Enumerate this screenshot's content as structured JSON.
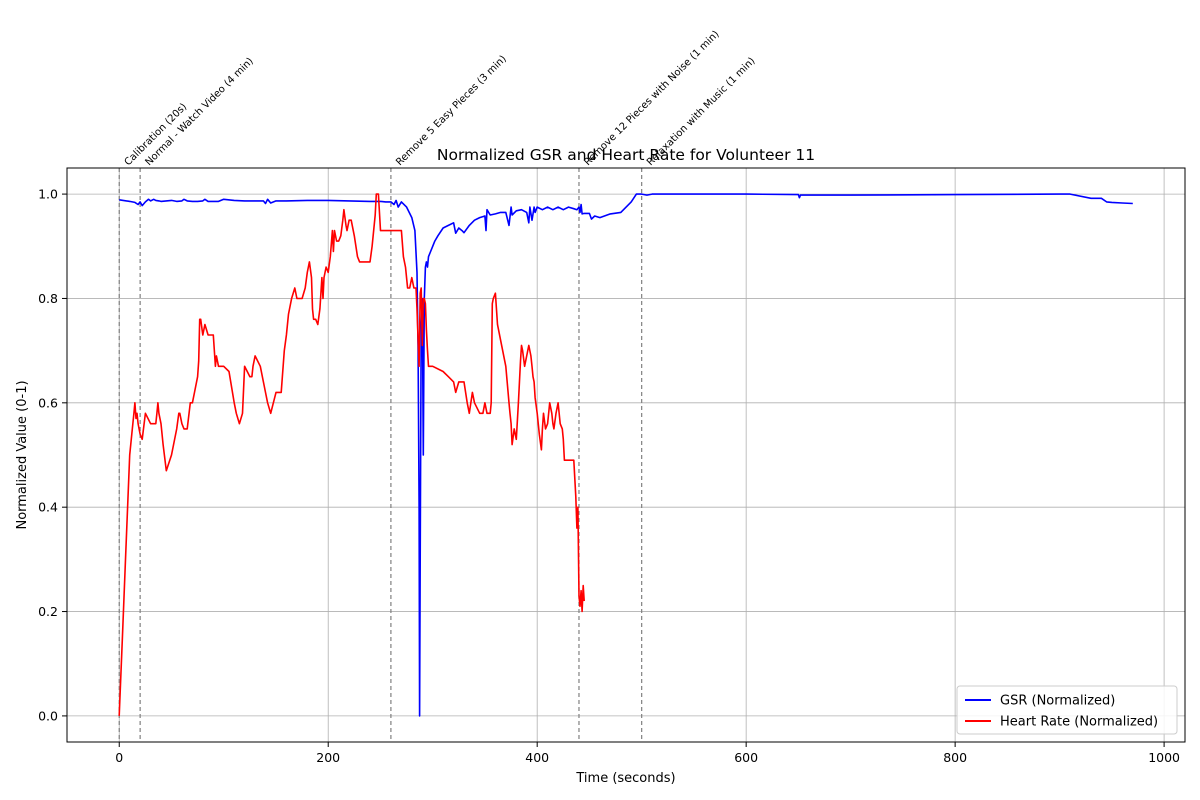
{
  "chart_data": {
    "type": "line",
    "title": "Normalized GSR and Heart Rate for Volunteer 11",
    "xlabel": "Time (seconds)",
    "ylabel": "Normalized Value (0-1)",
    "xlim": [
      -50,
      1020
    ],
    "ylim": [
      -0.05,
      1.05
    ],
    "xticks": [
      0,
      200,
      400,
      600,
      800,
      1000
    ],
    "xtick_labels": [
      "0",
      "200",
      "400",
      "600",
      "800",
      "1000"
    ],
    "yticks": [
      0.0,
      0.2,
      0.4,
      0.6,
      0.8,
      1.0
    ],
    "ytick_labels": [
      "0.0",
      "0.2",
      "0.4",
      "0.6",
      "0.8",
      "1.0"
    ],
    "grid": true,
    "legend_position": "lower right",
    "phases": [
      {
        "x": 0,
        "label": "Calibration (20s)"
      },
      {
        "x": 20,
        "label": "Normal - Watch Video (4 min)"
      },
      {
        "x": 260,
        "label": "Remove 5 Easy Pieces (3 min)"
      },
      {
        "x": 440,
        "label": "Remove 12 Pieces with Noise (1 min)"
      },
      {
        "x": 500,
        "label": "Relaxation with Music (1 min)"
      }
    ],
    "series": [
      {
        "name": "GSR (Normalized)",
        "color": "#0000ff",
        "x": [
          0,
          10,
          15,
          18,
          20,
          22,
          25,
          28,
          30,
          33,
          35,
          38,
          40,
          45,
          50,
          55,
          60,
          62,
          65,
          70,
          75,
          80,
          82,
          85,
          90,
          95,
          100,
          110,
          120,
          130,
          138,
          140,
          142,
          145,
          150,
          160,
          180,
          200,
          220,
          240,
          250,
          255,
          260,
          263,
          265,
          267,
          270,
          275,
          280,
          283,
          285,
          286,
          287,
          287.5,
          288,
          289,
          290,
          291,
          292,
          293,
          294,
          295,
          296,
          298,
          300,
          302,
          305,
          310,
          315,
          320,
          322,
          325,
          328,
          330,
          335,
          340,
          345,
          350,
          351,
          352,
          355,
          360,
          365,
          370,
          373,
          375,
          376,
          380,
          385,
          390,
          392,
          393,
          395,
          397,
          398,
          400,
          405,
          410,
          415,
          420,
          425,
          430,
          435,
          438,
          440,
          441,
          442,
          443,
          445,
          450,
          452,
          455,
          460,
          470,
          480,
          490,
          495,
          500,
          505,
          510,
          520,
          600,
          650,
          651,
          652,
          655,
          700,
          800,
          900,
          910,
          930,
          940,
          945,
          950,
          960,
          970
        ],
        "y": [
          0.989,
          0.986,
          0.984,
          0.98,
          0.985,
          0.978,
          0.985,
          0.99,
          0.987,
          0.99,
          0.988,
          0.987,
          0.986,
          0.987,
          0.988,
          0.986,
          0.987,
          0.99,
          0.987,
          0.986,
          0.986,
          0.987,
          0.99,
          0.986,
          0.986,
          0.986,
          0.99,
          0.988,
          0.987,
          0.987,
          0.987,
          0.982,
          0.99,
          0.983,
          0.987,
          0.987,
          0.988,
          0.988,
          0.987,
          0.986,
          0.986,
          0.985,
          0.985,
          0.98,
          0.988,
          0.975,
          0.985,
          0.975,
          0.955,
          0.93,
          0.85,
          0.7,
          0.4,
          0.0,
          0.3,
          0.75,
          0.8,
          0.5,
          0.8,
          0.86,
          0.87,
          0.86,
          0.88,
          0.89,
          0.9,
          0.91,
          0.92,
          0.935,
          0.94,
          0.945,
          0.925,
          0.935,
          0.93,
          0.926,
          0.94,
          0.95,
          0.955,
          0.958,
          0.93,
          0.97,
          0.96,
          0.962,
          0.965,
          0.965,
          0.94,
          0.975,
          0.96,
          0.968,
          0.97,
          0.965,
          0.945,
          0.975,
          0.95,
          0.975,
          0.965,
          0.975,
          0.97,
          0.975,
          0.97,
          0.975,
          0.97,
          0.975,
          0.972,
          0.97,
          0.975,
          0.965,
          0.98,
          0.962,
          0.963,
          0.963,
          0.952,
          0.958,
          0.955,
          0.962,
          0.965,
          0.985,
          1.0,
          1.0,
          0.998,
          1.0,
          1.0,
          1.0,
          0.999,
          0.993,
          0.998,
          0.998,
          0.998,
          0.999,
          1.0,
          1.0,
          0.992,
          0.992,
          0.985,
          0.984,
          0.983,
          0.982
        ]
      },
      {
        "name": "Heart Rate (Normalized)",
        "color": "#ff0000",
        "x": [
          0,
          3,
          6,
          10,
          12,
          14,
          15,
          16,
          17,
          18,
          20,
          22,
          25,
          30,
          35,
          36,
          37,
          38,
          40,
          42,
          45,
          50,
          55,
          57,
          58,
          60,
          62,
          65,
          68,
          70,
          72,
          75,
          76,
          77,
          78,
          80,
          82,
          85,
          90,
          92,
          93,
          95,
          100,
          105,
          110,
          112,
          115,
          118,
          120,
          125,
          127,
          128,
          130,
          135,
          138,
          140,
          142,
          145,
          150,
          155,
          158,
          160,
          162,
          165,
          168,
          170,
          175,
          178,
          180,
          182,
          184,
          185,
          186,
          188,
          190,
          192,
          194,
          195,
          196,
          198,
          200,
          202,
          204,
          205,
          206,
          208,
          210,
          212,
          214,
          215,
          217,
          218,
          220,
          222,
          225,
          228,
          230,
          235,
          240,
          242,
          245,
          246,
          248,
          250,
          252,
          255,
          260,
          265,
          270,
          272,
          274,
          276,
          278,
          280,
          282,
          284,
          285,
          286,
          287,
          288,
          289,
          290,
          291,
          292,
          293,
          294,
          295,
          296,
          298,
          300,
          310,
          315,
          320,
          322,
          325,
          330,
          333,
          335,
          338,
          340,
          345,
          348,
          350,
          352,
          355,
          356,
          357,
          358,
          360,
          362,
          365,
          370,
          373,
          374,
          375,
          376,
          378,
          380,
          382,
          384,
          385,
          386,
          388,
          390,
          392,
          394,
          395,
          396,
          397,
          398,
          400,
          402,
          404,
          405,
          406,
          408,
          410,
          412,
          414,
          415,
          416,
          418,
          420,
          422,
          424,
          425,
          426,
          428,
          430,
          432,
          435,
          437,
          438,
          439,
          440,
          441,
          442,
          443,
          444,
          445
        ],
        "y": [
          0.0,
          0.15,
          0.3,
          0.5,
          0.54,
          0.58,
          0.6,
          0.57,
          0.58,
          0.56,
          0.54,
          0.53,
          0.58,
          0.56,
          0.56,
          0.58,
          0.6,
          0.58,
          0.56,
          0.52,
          0.47,
          0.5,
          0.55,
          0.58,
          0.58,
          0.56,
          0.55,
          0.55,
          0.6,
          0.6,
          0.62,
          0.65,
          0.68,
          0.76,
          0.76,
          0.73,
          0.75,
          0.73,
          0.73,
          0.67,
          0.69,
          0.67,
          0.67,
          0.66,
          0.6,
          0.58,
          0.56,
          0.58,
          0.67,
          0.65,
          0.65,
          0.67,
          0.69,
          0.67,
          0.64,
          0.62,
          0.6,
          0.58,
          0.62,
          0.62,
          0.7,
          0.73,
          0.77,
          0.8,
          0.82,
          0.8,
          0.8,
          0.82,
          0.85,
          0.87,
          0.84,
          0.78,
          0.76,
          0.76,
          0.75,
          0.78,
          0.84,
          0.8,
          0.84,
          0.86,
          0.85,
          0.88,
          0.93,
          0.89,
          0.93,
          0.91,
          0.91,
          0.92,
          0.95,
          0.97,
          0.94,
          0.93,
          0.95,
          0.95,
          0.92,
          0.88,
          0.87,
          0.87,
          0.87,
          0.9,
          0.96,
          1.0,
          1.0,
          0.93,
          0.93,
          0.93,
          0.93,
          0.93,
          0.93,
          0.88,
          0.86,
          0.82,
          0.82,
          0.84,
          0.82,
          0.82,
          0.78,
          0.72,
          0.67,
          0.81,
          0.82,
          0.71,
          0.8,
          0.8,
          0.79,
          0.74,
          0.7,
          0.67,
          0.67,
          0.67,
          0.66,
          0.65,
          0.64,
          0.62,
          0.64,
          0.64,
          0.6,
          0.58,
          0.62,
          0.6,
          0.58,
          0.58,
          0.6,
          0.58,
          0.58,
          0.6,
          0.79,
          0.8,
          0.81,
          0.75,
          0.72,
          0.67,
          0.6,
          0.58,
          0.56,
          0.52,
          0.55,
          0.53,
          0.6,
          0.68,
          0.71,
          0.7,
          0.67,
          0.69,
          0.71,
          0.69,
          0.67,
          0.65,
          0.64,
          0.61,
          0.58,
          0.54,
          0.51,
          0.55,
          0.58,
          0.55,
          0.56,
          0.6,
          0.58,
          0.56,
          0.55,
          0.58,
          0.6,
          0.56,
          0.55,
          0.53,
          0.49,
          0.49,
          0.49,
          0.49,
          0.49,
          0.42,
          0.36,
          0.4,
          0.23,
          0.21,
          0.24,
          0.2,
          0.25,
          0.22
        ]
      }
    ]
  }
}
